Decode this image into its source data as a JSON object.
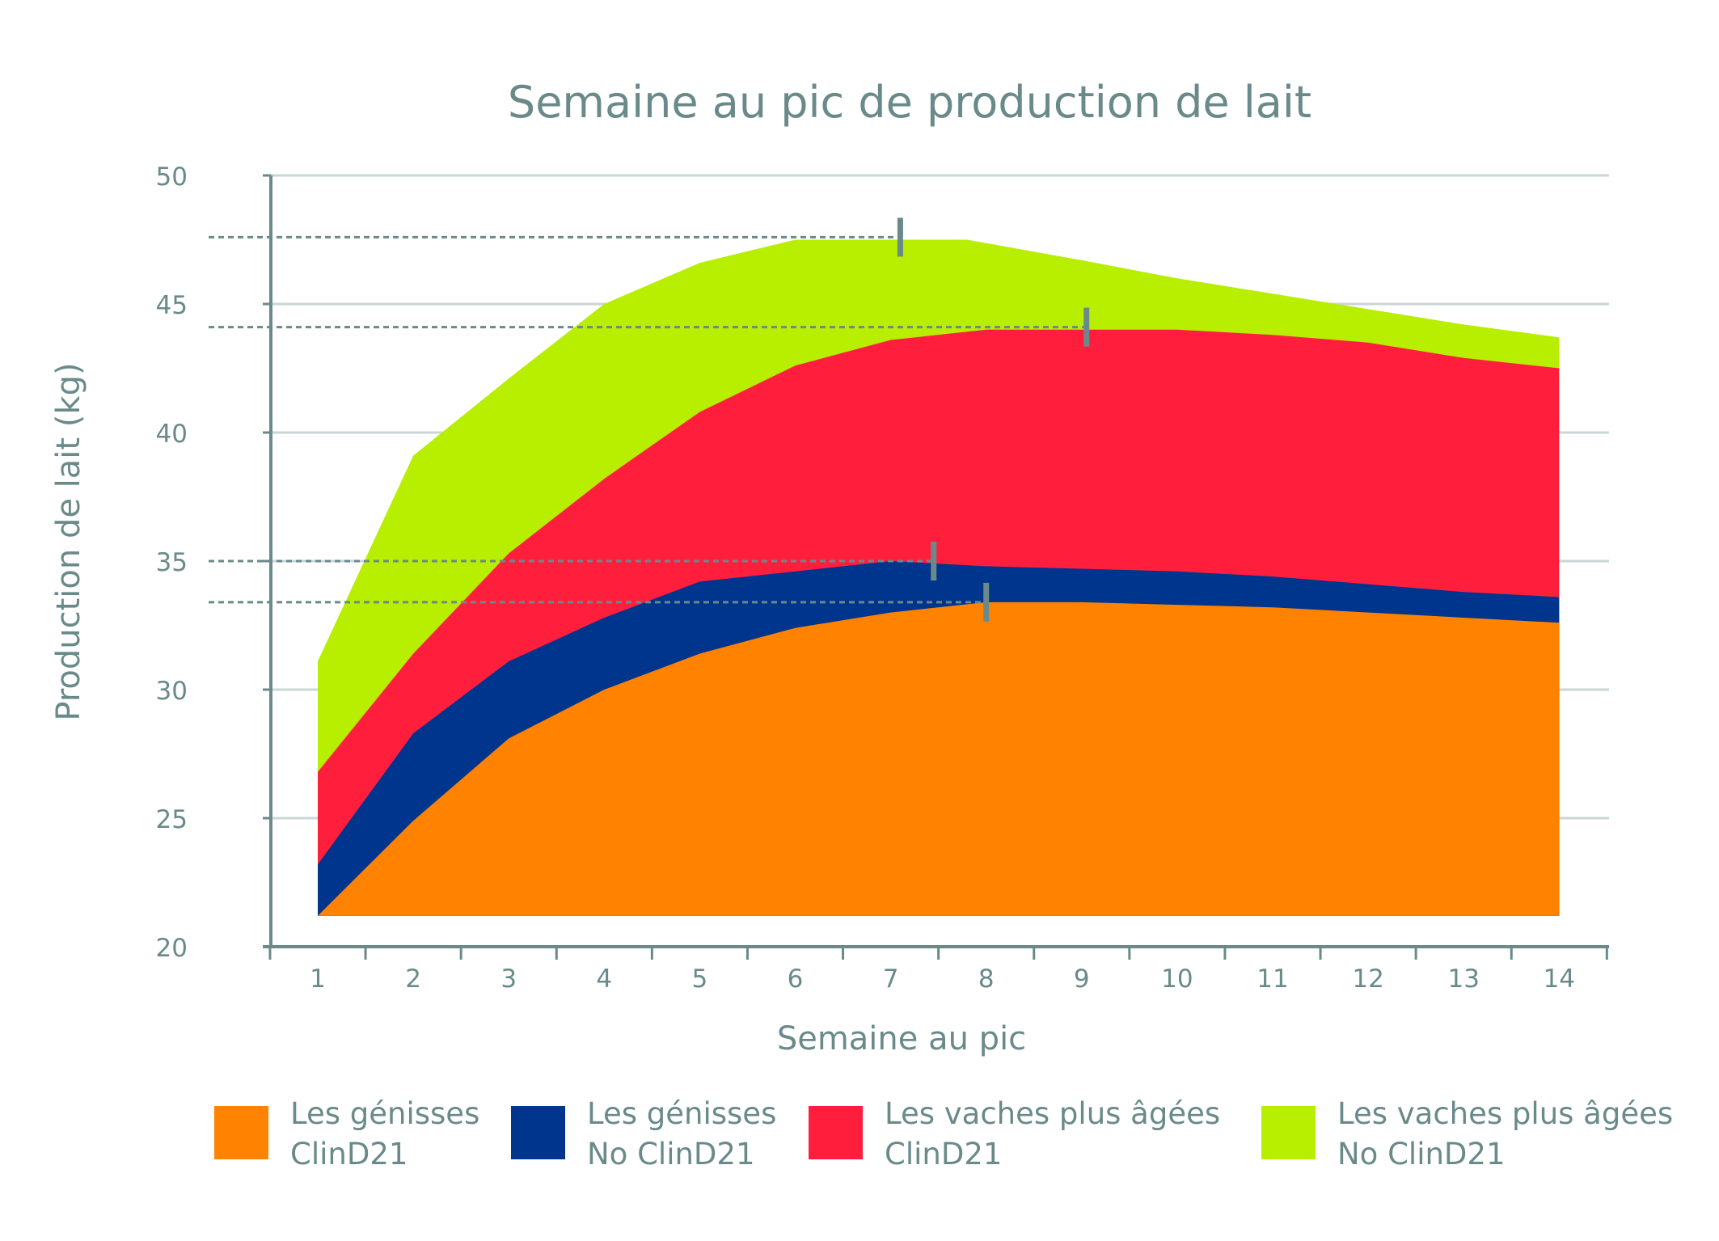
{
  "chart_data": {
    "type": "area",
    "title": "Semaine au pic de production de lait",
    "xlabel": "Semaine au pic",
    "ylabel": "Production de lait (kg)",
    "x": [
      1,
      2,
      3,
      4,
      5,
      6,
      7,
      8,
      9,
      10,
      11,
      12,
      13,
      14
    ],
    "x_tick_labels": [
      "1",
      "2",
      "3",
      "4",
      "5",
      "6",
      "7",
      "8",
      "9",
      "10",
      "11",
      "12",
      "13",
      "14"
    ],
    "y_tick_labels": [
      "20",
      "25",
      "30",
      "35",
      "40",
      "45",
      "50"
    ],
    "ylim": [
      20,
      50
    ],
    "grid": true,
    "baseline": 21.2,
    "legend_position": "bottom",
    "series": [
      {
        "name_line1": "Les vaches plus âgées",
        "name_line2": "No ClinD21",
        "color": "#b8ee00",
        "points": [
          [
            1,
            31.1
          ],
          [
            2,
            39.1
          ],
          [
            3,
            42.1
          ],
          [
            4,
            45.0
          ],
          [
            5,
            46.6
          ],
          [
            6,
            47.5
          ],
          [
            7,
            47.5
          ],
          [
            7.8,
            47.5
          ],
          [
            9,
            46.7
          ],
          [
            10,
            46.0
          ],
          [
            11,
            45.4
          ],
          [
            12,
            44.8
          ],
          [
            13,
            44.2
          ],
          [
            14,
            43.7
          ]
        ]
      },
      {
        "name_line1": "Les vaches plus âgées",
        "name_line2": "ClinD21",
        "color": "#ff1f3d",
        "points": [
          [
            1,
            26.8
          ],
          [
            2,
            31.4
          ],
          [
            3,
            35.3
          ],
          [
            4,
            38.2
          ],
          [
            5,
            40.8
          ],
          [
            6,
            42.6
          ],
          [
            7,
            43.6
          ],
          [
            8,
            44.0
          ],
          [
            9,
            44.0
          ],
          [
            10,
            44.0
          ],
          [
            11,
            43.8
          ],
          [
            12,
            43.5
          ],
          [
            13,
            42.9
          ],
          [
            14,
            42.5
          ]
        ]
      },
      {
        "name_line1": "Les génisses",
        "name_line2": "No ClinD21",
        "color": "#00358e",
        "points": [
          [
            1,
            23.2
          ],
          [
            2,
            28.3
          ],
          [
            3,
            31.1
          ],
          [
            4,
            32.8
          ],
          [
            5,
            34.2
          ],
          [
            6,
            34.6
          ],
          [
            7,
            35.0
          ],
          [
            8,
            34.8
          ],
          [
            9,
            34.7
          ],
          [
            10,
            34.6
          ],
          [
            11,
            34.4
          ],
          [
            12,
            34.1
          ],
          [
            13,
            33.8
          ],
          [
            14,
            33.6
          ]
        ]
      },
      {
        "name_line1": "Les génisses",
        "name_line2": "ClinD21",
        "color": "#ff8200",
        "points": [
          [
            1,
            21.2
          ],
          [
            2,
            24.9
          ],
          [
            3,
            28.1
          ],
          [
            4,
            30.0
          ],
          [
            5,
            31.4
          ],
          [
            6,
            32.4
          ],
          [
            7,
            33.0
          ],
          [
            8,
            33.4
          ],
          [
            9,
            33.4
          ],
          [
            10,
            33.3
          ],
          [
            11,
            33.2
          ],
          [
            12,
            33.0
          ],
          [
            13,
            32.8
          ],
          [
            14,
            32.6
          ]
        ]
      }
    ],
    "peak_markers": [
      {
        "x": 7.1,
        "y": 47.6
      },
      {
        "x": 9.05,
        "y": 44.1
      },
      {
        "x": 7.45,
        "y": 35.0
      },
      {
        "x": 8.0,
        "y": 33.4
      }
    ],
    "colors": {
      "axis": "#6a8a8a",
      "grid": "#c9d6d6",
      "marker": "#6a8a8a"
    }
  }
}
